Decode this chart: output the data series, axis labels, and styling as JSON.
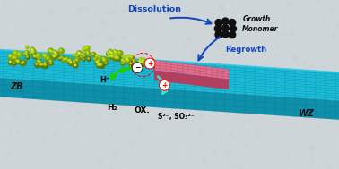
{
  "bg_color": "#cdd5d9",
  "rod_top_color": "#1abcd8",
  "rod_front_color": "#0e8faa",
  "rod_grid_dark": "#0a6880",
  "rod_grid_light": "#40d0ee",
  "np_colors": [
    "#6a9000",
    "#8ab800",
    "#aad400",
    "#c8e840"
  ],
  "microrod_color": "#e07090",
  "microrod_dark": "#b04060",
  "microrod_light": "#f0a8c0",
  "monomer_color": "#101010",
  "blue_arrow": "#1144bb",
  "green_arrow": "#22cc00",
  "cyan_arrow": "#44ddcc",
  "text_dissolution": "Dissolution",
  "text_growth_monomer": "Growth\nMonomer",
  "text_regrowth": "Regrowth",
  "text_ZB": "ZB",
  "text_WZ": "WZ",
  "text_H_plus": "H⁺",
  "text_H2": "H₂",
  "text_OX": "OX.",
  "text_S2_SO3": "S²⁻, SO₃²⁻",
  "electron_symbol": "−",
  "hole_symbol": "+",
  "figsize": [
    3.78,
    1.89
  ],
  "dpi": 100
}
